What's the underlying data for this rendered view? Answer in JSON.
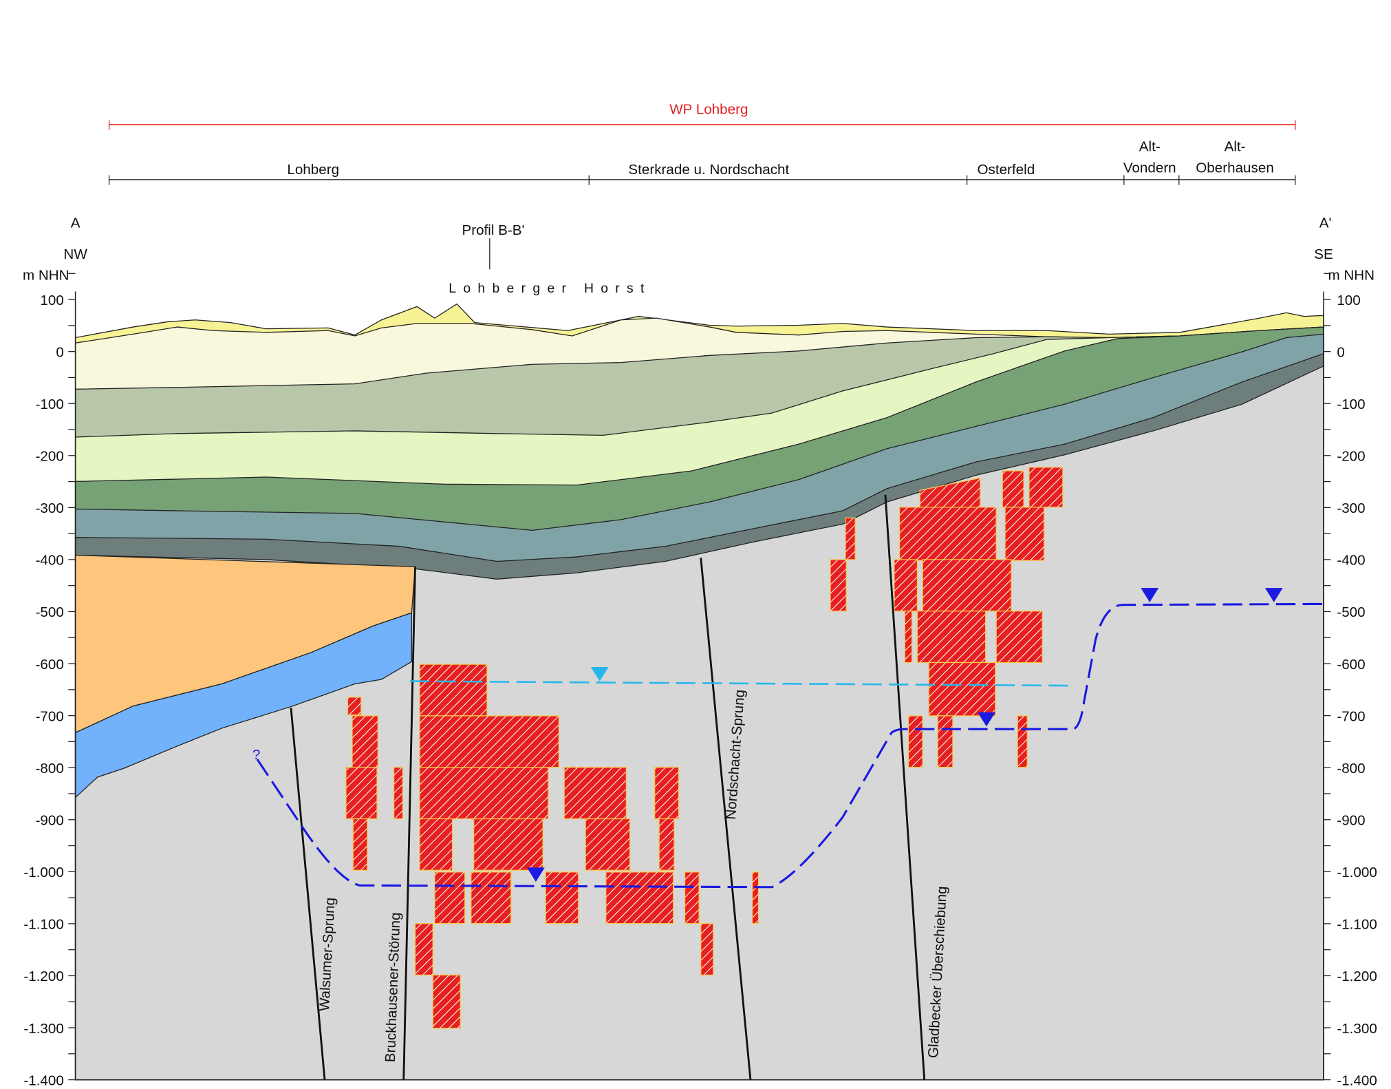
{
  "header": {
    "title": "WP Lohberg",
    "sections": [
      {
        "lines": [
          "Lohberg"
        ]
      },
      {
        "lines": [
          "Sterkrade u. Nordschacht"
        ]
      },
      {
        "lines": [
          "Osterfeld"
        ]
      },
      {
        "lines": [
          "Alt-",
          "Vondern"
        ]
      },
      {
        "lines": [
          "Alt-",
          "Oberhausen"
        ]
      }
    ]
  },
  "profile": {
    "left_label": "A",
    "left_direction": "NW",
    "right_label": "A'",
    "right_direction": "SE",
    "crossing": "Profil B-B'",
    "structure": "Lohberger Horst"
  },
  "axis": {
    "unit": "m NHN",
    "ticks": [
      "100",
      "0",
      "-100",
      "-200",
      "-300",
      "-400",
      "-500",
      "-600",
      "-700",
      "-800",
      "-900",
      "-1.000",
      "-1.100",
      "-1.200",
      "-1.300",
      "-1.400"
    ]
  },
  "faults": [
    "Walsumer-Sprung",
    "Bruckhausener-Störung",
    "Nordschacht-Sprung",
    "Gladbecker Überschiebung"
  ],
  "question_mark": "?"
}
